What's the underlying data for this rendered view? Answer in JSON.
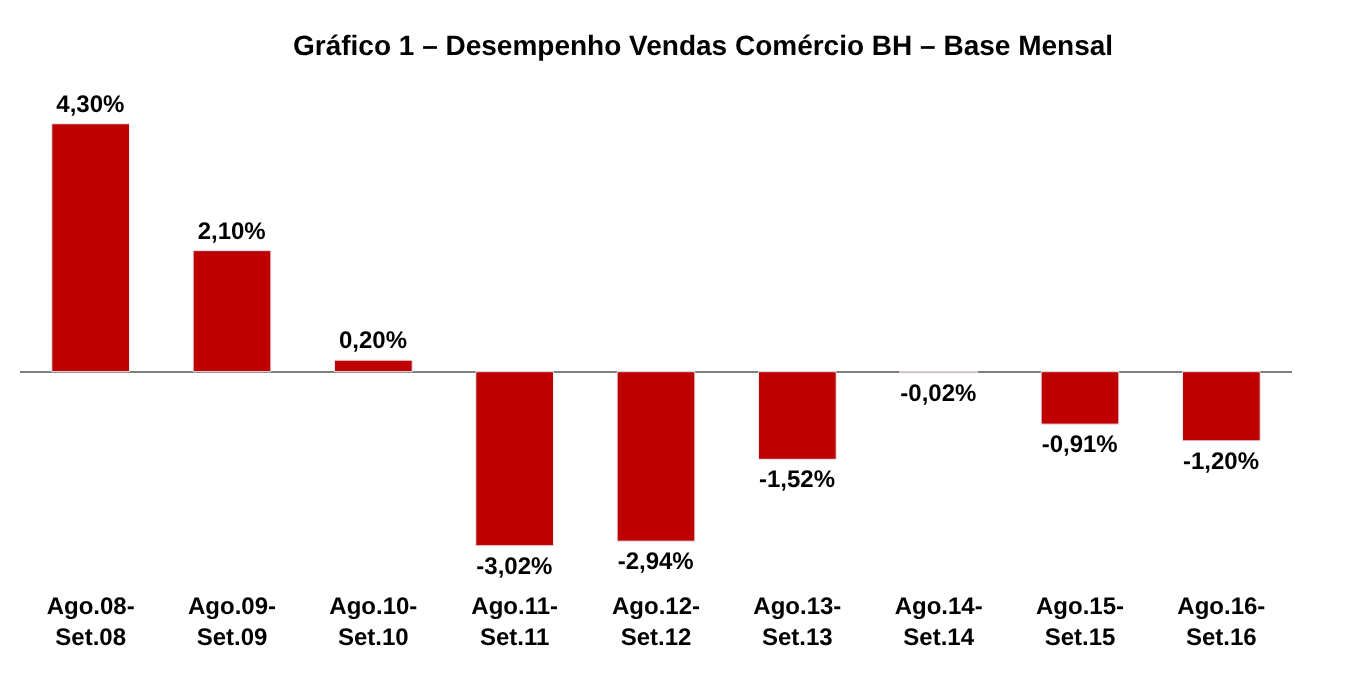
{
  "chart_data": {
    "type": "bar",
    "title": "Gráfico 1 – Desempenho Vendas Comércio BH – Base Mensal",
    "categories": [
      "Ago.08-\nSet.08",
      "Ago.09-\nSet.09",
      "Ago.10-\nSet.10",
      "Ago.11-\nSet.11",
      "Ago.12-\nSet.12",
      "Ago.13-\nSet.13",
      "Ago.14-\nSet.14",
      "Ago.15-\nSet.15",
      "Ago.16-\nSet.16"
    ],
    "values": [
      4.3,
      2.1,
      0.2,
      -3.02,
      -2.94,
      -1.52,
      -0.02,
      -0.91,
      -1.2
    ],
    "value_labels": [
      "4,30%",
      "2,10%",
      "0,20%",
      "-3,02%",
      "-2,94%",
      "-1,52%",
      "-0,02%",
      "-0,91%",
      "-1,20%"
    ],
    "color": "#c00000",
    "legend": false
  }
}
